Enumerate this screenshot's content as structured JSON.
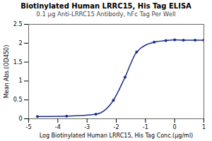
{
  "chart_data": {
    "type": "line",
    "title": "Biotinylated Human LRRC15, His Tag ELISA",
    "subtitle": "0.1 μg Anti-LRRC15 Antibody, hFc Tag Per Well",
    "xlabel": "Log Biotinylated Human LRRC15, His Tag Conc.(μg/ml)",
    "ylabel": "Mean Abs.(OD450)",
    "x": [
      -4.699,
      -3.699,
      -2.699,
      -2.097,
      -1.699,
      -1.301,
      -0.699,
      -0.301,
      0.0,
      0.301,
      0.699,
      1.0
    ],
    "values": [
      0.06,
      0.07,
      0.12,
      0.49,
      1.1,
      1.77,
      2.03,
      2.07,
      2.09,
      2.08,
      2.08,
      2.08
    ],
    "color": "#1a2e8c",
    "marker": "circle",
    "line_style": "solid",
    "xlim": [
      -5,
      1
    ],
    "ylim": [
      0,
      2.5
    ],
    "xticks": [
      -5,
      -4,
      -3,
      -2,
      -1,
      0,
      1
    ],
    "yticks": [
      0,
      0.5,
      1,
      1.5,
      2,
      2.5
    ]
  }
}
